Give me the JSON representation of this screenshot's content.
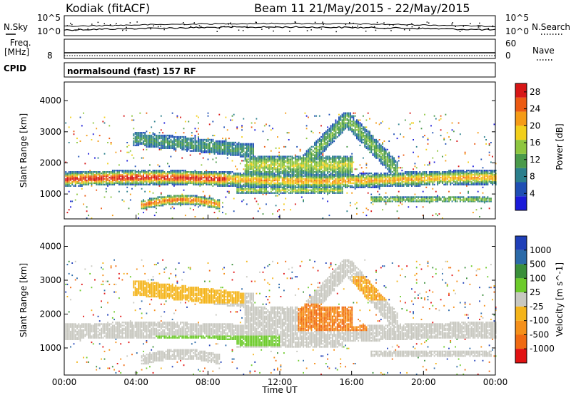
{
  "header": {
    "station": "Kodiak (fitACF)",
    "beam_date": "Beam 11 21/May/2015 - 22/May/2015"
  },
  "noise_panel": {
    "left_label": "N.Sky",
    "right_label": "N.Search",
    "left_ticks": [
      "10^5",
      "10^0"
    ],
    "right_ticks": [
      "10^5",
      "10^0"
    ]
  },
  "freq_panel": {
    "left_label_line1": "Freq.",
    "left_label_line2": "[MHz]",
    "left_tick": "8",
    "right_label": "Nave",
    "right_ticks": [
      "60",
      "0"
    ]
  },
  "cpid_panel": {
    "label": "CPID",
    "text": "normalsound (fast) 157 RF"
  },
  "colors": {
    "power": [
      "#1b1bd9",
      "#1f4fb4",
      "#2b7f8c",
      "#4a9a4a",
      "#8ec63f",
      "#f2cf1b",
      "#f59b16",
      "#ec5a12",
      "#d71616"
    ],
    "velocity": [
      "#1f3fb8",
      "#2b6aa8",
      "#3a8f3a",
      "#6dcb2b",
      "#c8c8c0",
      "#f4b41a",
      "#f5901a",
      "#f06a12",
      "#e11212"
    ]
  },
  "chart_data": [
    {
      "type": "heatmap",
      "title": "Power",
      "xlabel": "",
      "ylabel": "Slant Range [km]",
      "x_ticks": [
        "00:00",
        "04:00",
        "08:00",
        "12:00",
        "16:00",
        "20:00",
        "00:00"
      ],
      "xlim": [
        0,
        24
      ],
      "y_ticks": [
        1000,
        2000,
        3000,
        4000
      ],
      "ylim": [
        200,
        4600
      ],
      "colorbar": {
        "label": "Power [dB]",
        "ticks": [
          4,
          8,
          12,
          16,
          20,
          24,
          28
        ],
        "range": [
          0,
          30
        ]
      },
      "features": [
        {
          "name": "main band",
          "t_start": 0,
          "t_end": 24,
          "range_km": 1400,
          "peak_power_db": 30
        },
        {
          "name": "low arc",
          "t_start": 4.5,
          "t_end": 8.5,
          "range_km": 700
        },
        {
          "name": "upper patch",
          "t_start": 4,
          "t_end": 10,
          "range_km": 2700
        },
        {
          "name": "high arc",
          "t_start": 13,
          "t_end": 18,
          "range_km": 2900
        }
      ]
    },
    {
      "type": "heatmap",
      "title": "Velocity",
      "xlabel": "Time UT",
      "ylabel": "Slant Range [km]",
      "x_ticks": [
        "00:00",
        "04:00",
        "08:00",
        "12:00",
        "16:00",
        "20:00",
        "00:00"
      ],
      "xlim": [
        0,
        24
      ],
      "y_ticks": [
        1000,
        2000,
        3000,
        4000
      ],
      "ylim": [
        200,
        4600
      ],
      "colorbar": {
        "label": "Velocity [m s^-1]",
        "ticks": [
          "1000",
          "500",
          "100",
          "25",
          "-25",
          "-100",
          "-500",
          "-1000"
        ]
      },
      "features": [
        {
          "name": "ground scatter band",
          "t_start": 0,
          "t_end": 24,
          "range_km": 1400,
          "velocity": "±25"
        },
        {
          "name": "green patch",
          "t_start": 5,
          "t_end": 12,
          "range_km": 1200,
          "velocity": "25 to 100"
        },
        {
          "name": "orange/red patch",
          "t_start": 13,
          "t_end": 16.5,
          "range_km": 1800,
          "velocity": "-500 to -100"
        }
      ]
    }
  ]
}
